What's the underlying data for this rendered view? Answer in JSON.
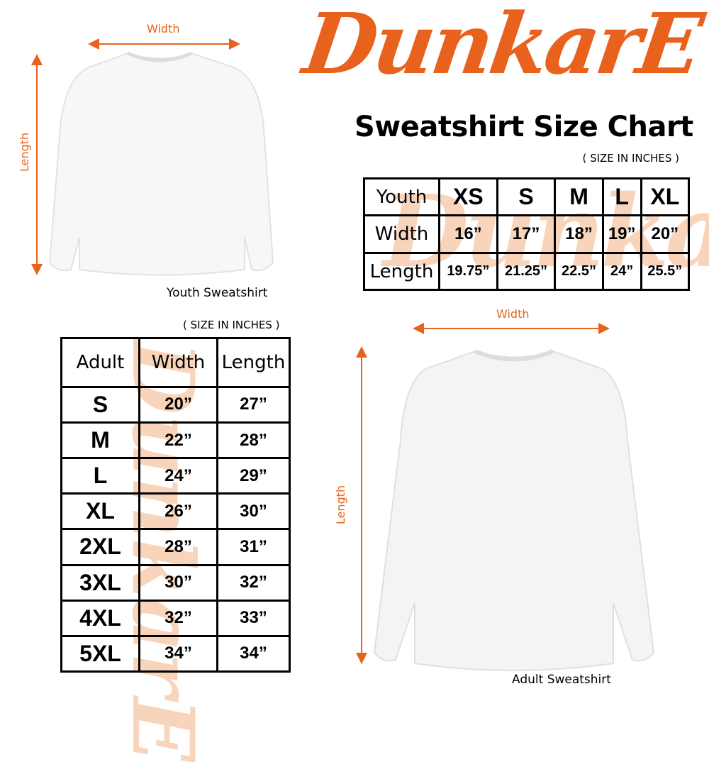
{
  "brand": {
    "logo_text": "DunkarE",
    "color": "#e8621e"
  },
  "title": "Sweatshirt Size Chart",
  "youth": {
    "caption": "Youth Sweatshirt",
    "width_label": "Width",
    "length_label": "Length",
    "unit_note": "( SIZE IN INCHES )",
    "table": {
      "header": [
        "Youth",
        "XS",
        "S",
        "M",
        "L",
        "XL"
      ],
      "rows": [
        [
          "Width",
          "16”",
          "17”",
          "18”",
          "19”",
          "20”"
        ],
        [
          "Length",
          "19.75”",
          "21.25”",
          "22.5”",
          "24”",
          "25.5”"
        ]
      ]
    }
  },
  "adult": {
    "caption": "Adult Sweatshirt",
    "width_label": "Width",
    "length_label": "Length",
    "unit_note": "( SIZE IN INCHES )",
    "table": {
      "header": [
        "Adult",
        "Width",
        "Length"
      ],
      "rows": [
        [
          "S",
          "20”",
          "27”"
        ],
        [
          "M",
          "22”",
          "28”"
        ],
        [
          "L",
          "24”",
          "29”"
        ],
        [
          "XL",
          "26”",
          "30”"
        ],
        [
          "2XL",
          "28”",
          "31”"
        ],
        [
          "3XL",
          "30”",
          "32”"
        ],
        [
          "4XL",
          "32”",
          "33”"
        ],
        [
          "5XL",
          "34”",
          "34”"
        ]
      ]
    }
  }
}
